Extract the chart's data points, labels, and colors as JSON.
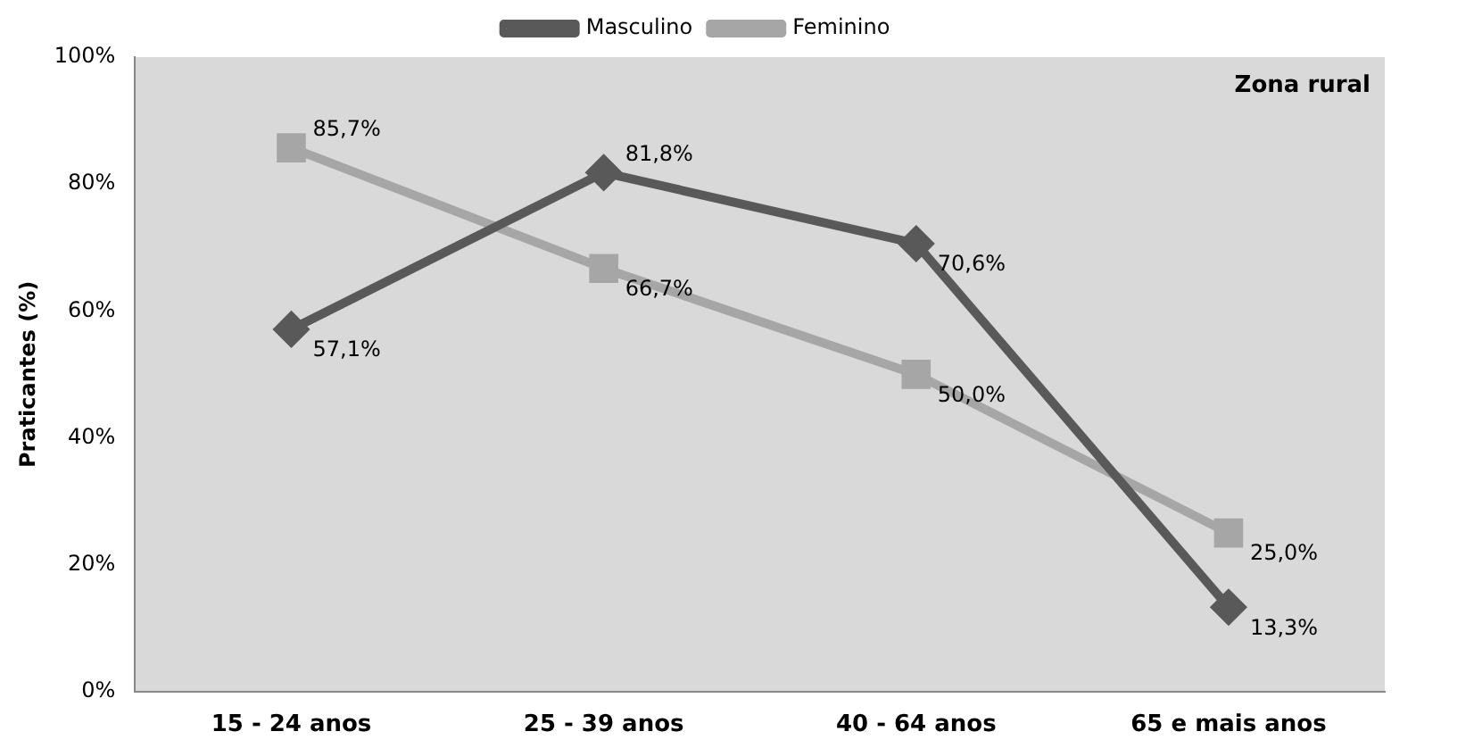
{
  "chart_data": {
    "type": "line",
    "ylabel": "Praticantes (%)",
    "categories": [
      "15 - 24 anos",
      "25 - 39 anos",
      "40 - 64 anos",
      "65 e mais anos"
    ],
    "series": [
      {
        "name": "Masculino",
        "color": "#595959",
        "marker": "diamond",
        "values": [
          57.1,
          81.8,
          70.6,
          13.3
        ],
        "value_labels": [
          "57,1%",
          "81,8%",
          "70,6%",
          "13,3%"
        ]
      },
      {
        "name": "Feminino",
        "color": "#a6a6a6",
        "marker": "square",
        "values": [
          85.7,
          66.7,
          50.0,
          25.0
        ],
        "value_labels": [
          "85,7%",
          "66,7%",
          "50,0%",
          "25,0%"
        ]
      }
    ],
    "ylim": [
      0,
      100
    ],
    "yticks": [
      {
        "value": 0,
        "label": "0%"
      },
      {
        "value": 20,
        "label": "20%"
      },
      {
        "value": 40,
        "label": "40%"
      },
      {
        "value": 60,
        "label": "60%"
      },
      {
        "value": 80,
        "label": "80%"
      },
      {
        "value": 100,
        "label": "100%"
      }
    ],
    "annotations": [
      "Zona rural"
    ],
    "legend": "top",
    "grid": false
  }
}
